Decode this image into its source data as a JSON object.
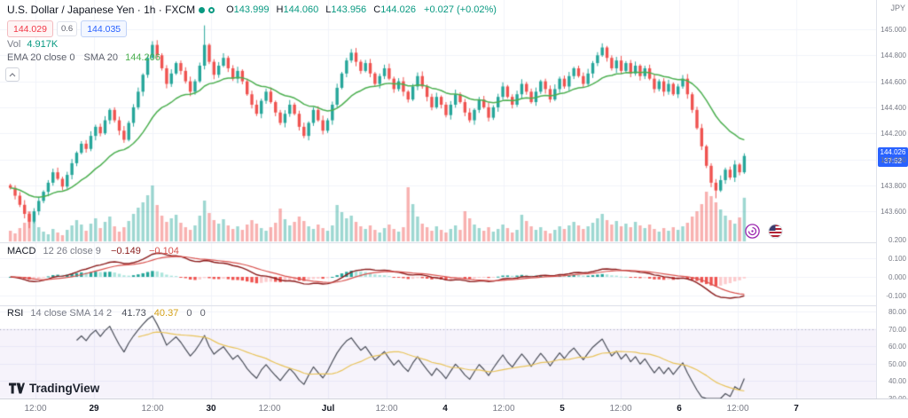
{
  "header": {
    "title": "U.S. Dollar / Japanese Yen · 1h · FXCM",
    "ohlc": [
      {
        "label": "O",
        "value": "143.999"
      },
      {
        "label": "H",
        "value": "144.060"
      },
      {
        "label": "L",
        "value": "143.956"
      },
      {
        "label": "C",
        "value": "144.026"
      }
    ],
    "change": "+0.027 (+0.02%)",
    "bid": "144.029",
    "spread": "0.6",
    "ask": "144.035",
    "volume_label": "Vol",
    "volume_value": "4.917K",
    "ma_ema": "EMA 20 close 0",
    "ma_sma": "SMA 20",
    "ma_value": "144.206"
  },
  "panes": {
    "macd": {
      "title": "MACD",
      "params": "12 26 close 9",
      "values": [
        "−0.149",
        "−0.104"
      ]
    },
    "rsi": {
      "title": "RSI",
      "params": "14 close SMA 14 2",
      "values": [
        "41.73",
        "40.37",
        "0",
        "0"
      ]
    }
  },
  "axis": {
    "currency": "JPY",
    "last_price": "144.026",
    "countdown": "37:52"
  },
  "logo": {
    "text": "TradingView"
  },
  "colors": {
    "up": "#26a69a",
    "down": "#ef5350",
    "up_vol": "rgba(38,166,154,0.45)",
    "down_vol": "rgba(239,83,80,0.45)",
    "ema": "#4caf50",
    "green_val": "#089981",
    "red": "#f23645",
    "blue": "#2962ff",
    "gray": "#787b86",
    "dark": "#131722",
    "grid": "#f0f3fa",
    "sep": "#e0e3eb",
    "macd_line": "#8b1d1d",
    "macd_signal": "#d9534f",
    "macd_pos_grow": "#26a69a",
    "macd_pos_fall": "#ace5dc",
    "macd_neg_grow": "#ef5350",
    "macd_neg_fall": "#fccbcd",
    "rsi_line": "#4a4e59",
    "rsi_sma": "#e8c35a",
    "rsi_sma_dark": "#d4a017",
    "rsi_band": "rgba(126,87,194,0.07)"
  },
  "chart_data": {
    "type": "candlestick",
    "title": "U.S. Dollar / Japanese Yen · 1h · FXCM",
    "ylabel": "JPY",
    "ylim": [
      143.35,
      145.25
    ],
    "price_axis_ticks": [
      145.0,
      144.8,
      144.6,
      144.4,
      144.2,
      144.0,
      143.8,
      143.6
    ],
    "macd_axis_ticks": [
      0.2,
      0.1,
      0.0,
      -0.1
    ],
    "rsi_axis_ticks": [
      80,
      70,
      60,
      50,
      40,
      30
    ],
    "last_price": 144.026,
    "x_tick_labels": [
      "12:00",
      "29",
      "12:00",
      "30",
      "12:00",
      "Jul",
      "12:00",
      "4",
      "12:00",
      "5",
      "12:00",
      "6",
      "12:00",
      "7"
    ],
    "closes": [
      143.78,
      143.72,
      143.65,
      143.58,
      143.52,
      143.6,
      143.68,
      143.75,
      143.82,
      143.9,
      143.85,
      143.79,
      143.88,
      143.97,
      144.05,
      144.12,
      144.08,
      144.18,
      144.25,
      144.2,
      144.3,
      144.38,
      144.3,
      144.22,
      144.15,
      144.28,
      144.4,
      144.52,
      144.65,
      144.78,
      144.88,
      144.8,
      144.7,
      144.58,
      144.66,
      144.74,
      144.68,
      144.6,
      144.52,
      144.6,
      144.72,
      144.88,
      144.75,
      144.65,
      144.72,
      144.78,
      144.7,
      144.62,
      144.68,
      144.6,
      144.5,
      144.42,
      144.35,
      144.45,
      144.52,
      144.44,
      144.36,
      144.28,
      144.35,
      144.42,
      144.35,
      144.25,
      144.18,
      144.28,
      144.38,
      144.3,
      144.22,
      144.3,
      144.42,
      144.55,
      144.66,
      144.76,
      144.82,
      144.75,
      144.68,
      144.74,
      144.66,
      144.58,
      144.64,
      144.7,
      144.62,
      144.54,
      144.6,
      144.52,
      144.46,
      144.56,
      144.64,
      144.56,
      144.48,
      144.4,
      144.48,
      144.42,
      144.34,
      144.42,
      144.5,
      144.44,
      144.36,
      144.3,
      144.38,
      144.46,
      144.4,
      144.32,
      144.4,
      144.48,
      144.56,
      144.48,
      144.42,
      144.5,
      144.58,
      144.52,
      144.44,
      144.52,
      144.6,
      144.54,
      144.46,
      144.54,
      144.62,
      144.56,
      144.64,
      144.7,
      144.64,
      144.58,
      144.66,
      144.74,
      144.8,
      144.86,
      144.78,
      144.7,
      144.76,
      144.68,
      144.74,
      144.66,
      144.72,
      144.64,
      144.7,
      144.62,
      144.54,
      144.6,
      144.52,
      144.58,
      144.5,
      144.56,
      144.62,
      144.5,
      144.38,
      144.24,
      144.1,
      143.95,
      143.82,
      143.76,
      143.84,
      143.92,
      143.86,
      143.96,
      143.9,
      144.026
    ],
    "volumes_k": [
      1.2,
      0.9,
      1.5,
      2.1,
      3.4,
      2.2,
      1.6,
      1.1,
      0.8,
      1.4,
      1.0,
      0.7,
      1.3,
      1.8,
      2.4,
      1.9,
      1.2,
      2.0,
      2.6,
      1.5,
      2.2,
      2.8,
      1.7,
      1.1,
      1.6,
      2.3,
      3.1,
      3.8,
      4.4,
      5.2,
      6.3,
      4.1,
      2.9,
      2.2,
      2.6,
      3.0,
      2.1,
      1.6,
      1.3,
      1.8,
      2.9,
      4.6,
      3.2,
      2.4,
      2.0,
      2.5,
      1.8,
      1.4,
      1.7,
      1.3,
      1.9,
      2.4,
      2.0,
      1.5,
      1.2,
      1.6,
      2.1,
      3.7,
      2.5,
      1.8,
      2.2,
      2.8,
      2.3,
      1.7,
      1.4,
      1.9,
      1.5,
      1.2,
      1.8,
      4.1,
      3.3,
      2.6,
      2.9,
      2.2,
      1.7,
      1.4,
      1.8,
      1.3,
      1.0,
      1.5,
      1.9,
      1.4,
      1.1,
      1.6,
      6.1,
      4.2,
      2.8,
      2.0,
      1.6,
      1.2,
      1.7,
      1.3,
      1.0,
      1.4,
      1.8,
      1.3,
      3.4,
      2.6,
      1.9,
      1.5,
      1.2,
      1.6,
      1.1,
      1.4,
      1.9,
      1.5,
      1.0,
      1.3,
      3.0,
      2.3,
      1.7,
      1.3,
      1.6,
      1.2,
      0.9,
      1.3,
      1.7,
      1.4,
      1.8,
      2.2,
      1.8,
      1.4,
      1.7,
      2.1,
      2.6,
      3.1,
      2.4,
      1.9,
      2.3,
      1.7,
      2.0,
      1.6,
      2.2,
      1.8,
      1.5,
      1.9,
      1.4,
      1.1,
      1.5,
      1.2,
      1.6,
      1.3,
      1.7,
      2.1,
      2.8,
      3.4,
      4.2,
      5.6,
      5.1,
      4.4,
      3.6,
      2.9,
      2.4,
      2.0,
      2.7,
      4.917
    ],
    "spike_high": {
      "41": 145.03
    },
    "spike_low": {
      "4": 143.47,
      "149": 143.7
    },
    "indicators": {
      "ema_sma_period": 20,
      "ma_value_shown": 144.206,
      "macd_params": [
        12,
        26,
        9
      ],
      "macd_values_shown": [
        -0.149,
        -0.104
      ],
      "rsi_period": 14,
      "rsi_values_shown": [
        41.73,
        40.37
      ],
      "volume_shown_k": 4.917
    }
  }
}
